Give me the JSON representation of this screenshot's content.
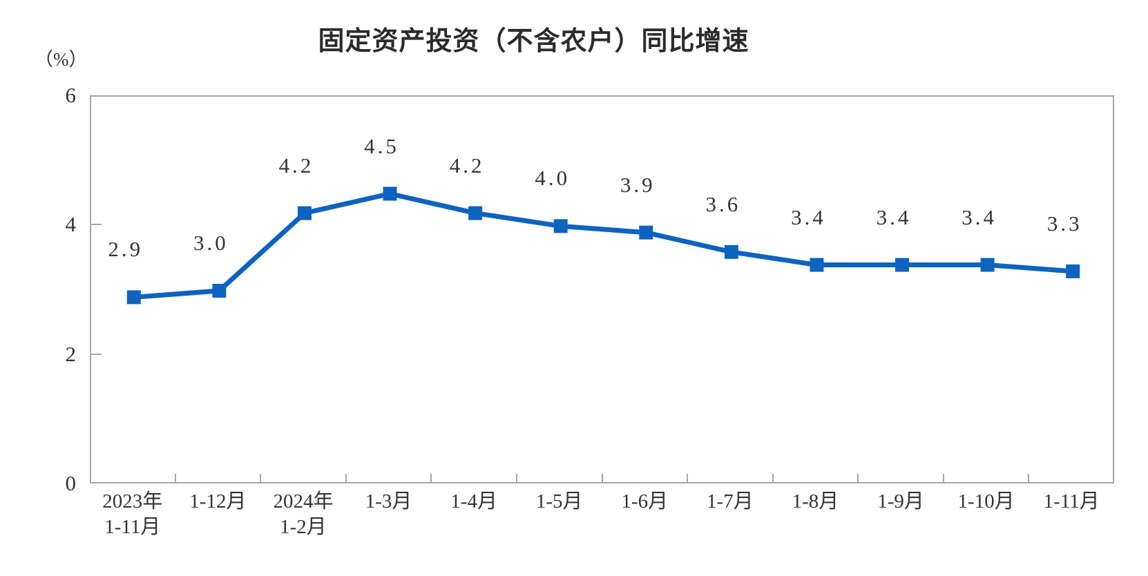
{
  "chart_data": {
    "type": "line",
    "title": "固定资产投资（不含农户）同比增速",
    "y_unit_label": "（%）",
    "categories": [
      "2023年\n1-11月",
      "1-12月",
      "2024年\n1-2月",
      "1-3月",
      "1-4月",
      "1-5月",
      "1-6月",
      "1-7月",
      "1-8月",
      "1-9月",
      "1-10月",
      "1-11月"
    ],
    "values": [
      2.9,
      3.0,
      4.2,
      4.5,
      4.2,
      4.0,
      3.9,
      3.6,
      3.4,
      3.4,
      3.4,
      3.3
    ],
    "data_labels": [
      "2.9",
      "3.0",
      "4.2",
      "4.5",
      "4.2",
      "4.0",
      "3.9",
      "3.6",
      "3.4",
      "3.4",
      "3.4",
      "3.3"
    ],
    "xlabel": "",
    "ylabel": "（%）",
    "ylim": [
      0,
      6
    ],
    "yticks": [
      0,
      2,
      4,
      6
    ],
    "grid": false,
    "legend_position": "none",
    "marker_shape": "square",
    "colors": {
      "line": "#0d63c0",
      "marker": "#0d63c0",
      "axis": "#a6a6a6",
      "text": "#333333",
      "title": "#2b2b2b"
    }
  }
}
